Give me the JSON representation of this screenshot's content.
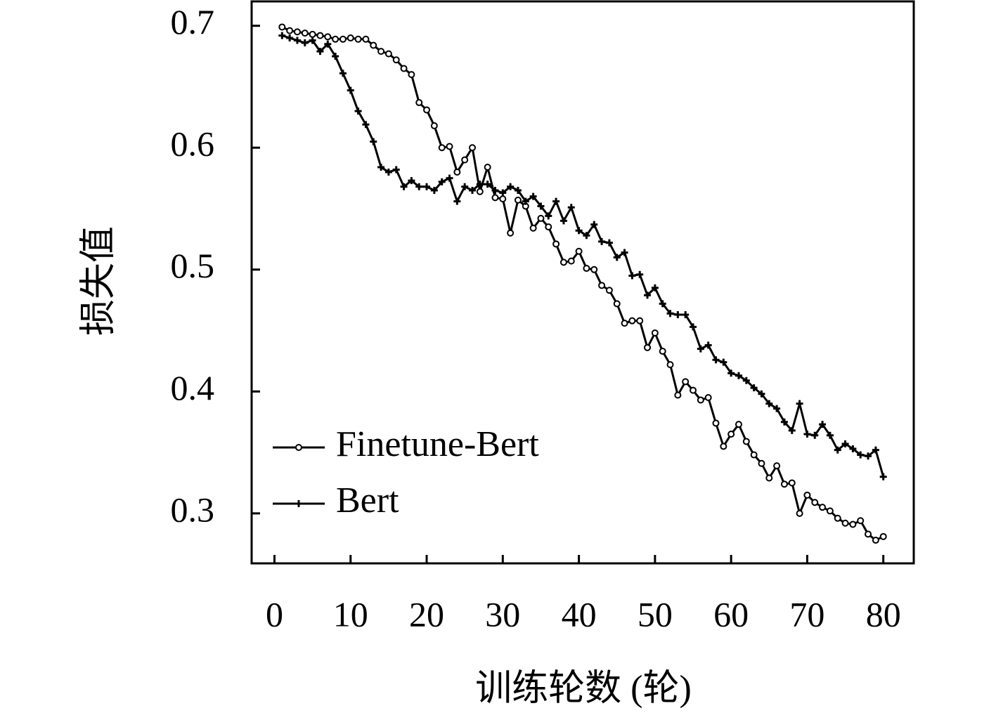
{
  "chart_data": {
    "type": "line",
    "xlabel": "训练轮数 (轮)",
    "ylabel": "损失值",
    "x": [
      1,
      2,
      3,
      4,
      5,
      6,
      7,
      8,
      9,
      10,
      11,
      12,
      13,
      14,
      15,
      16,
      17,
      18,
      19,
      20,
      21,
      22,
      23,
      24,
      25,
      26,
      27,
      28,
      29,
      30,
      31,
      32,
      33,
      34,
      35,
      36,
      37,
      38,
      39,
      40,
      41,
      42,
      43,
      44,
      45,
      46,
      47,
      48,
      49,
      50,
      51,
      52,
      53,
      54,
      55,
      56,
      57,
      58,
      59,
      60,
      61,
      62,
      63,
      64,
      65,
      66,
      67,
      68,
      69,
      70,
      71,
      72,
      73,
      74,
      75,
      76,
      77,
      78,
      79,
      80
    ],
    "series": [
      {
        "name": "Finetune-Bert",
        "color": "#000000",
        "marker": "circle",
        "values": [
          0.699,
          0.696,
          0.695,
          0.694,
          0.693,
          0.692,
          0.691,
          0.689,
          0.689,
          0.69,
          0.689,
          0.689,
          0.684,
          0.679,
          0.677,
          0.672,
          0.665,
          0.66,
          0.637,
          0.631,
          0.618,
          0.6,
          0.601,
          0.58,
          0.59,
          0.6,
          0.564,
          0.584,
          0.559,
          0.558,
          0.53,
          0.557,
          0.552,
          0.534,
          0.542,
          0.535,
          0.521,
          0.506,
          0.507,
          0.515,
          0.501,
          0.5,
          0.487,
          0.483,
          0.472,
          0.456,
          0.458,
          0.458,
          0.436,
          0.448,
          0.433,
          0.422,
          0.397,
          0.408,
          0.401,
          0.393,
          0.395,
          0.374,
          0.355,
          0.365,
          0.373,
          0.359,
          0.348,
          0.341,
          0.329,
          0.339,
          0.324,
          0.325,
          0.3,
          0.315,
          0.309,
          0.305,
          0.302,
          0.296,
          0.292,
          0.291,
          0.294,
          0.283,
          0.278,
          0.281
        ]
      },
      {
        "name": "Bert",
        "color": "#000000",
        "marker": "plus",
        "values": [
          0.692,
          0.69,
          0.688,
          0.686,
          0.688,
          0.679,
          0.685,
          0.675,
          0.661,
          0.647,
          0.63,
          0.619,
          0.605,
          0.584,
          0.58,
          0.582,
          0.568,
          0.573,
          0.568,
          0.568,
          0.565,
          0.572,
          0.575,
          0.556,
          0.568,
          0.565,
          0.57,
          0.57,
          0.565,
          0.563,
          0.568,
          0.565,
          0.556,
          0.56,
          0.552,
          0.544,
          0.556,
          0.54,
          0.551,
          0.532,
          0.528,
          0.537,
          0.523,
          0.522,
          0.51,
          0.514,
          0.495,
          0.496,
          0.479,
          0.485,
          0.472,
          0.464,
          0.463,
          0.463,
          0.453,
          0.435,
          0.438,
          0.426,
          0.424,
          0.415,
          0.413,
          0.409,
          0.403,
          0.398,
          0.39,
          0.386,
          0.375,
          0.368,
          0.39,
          0.365,
          0.364,
          0.373,
          0.364,
          0.352,
          0.357,
          0.353,
          0.348,
          0.347,
          0.352,
          0.33
        ]
      }
    ],
    "xlim": [
      -3,
      84
    ],
    "xticks": [
      0,
      10,
      20,
      30,
      40,
      50,
      60,
      70,
      80
    ],
    "ylim": [
      0.259,
      0.72
    ],
    "yticks": [
      0.3,
      0.4,
      0.5,
      0.6,
      0.7
    ],
    "grid": false,
    "legend": "lower left"
  }
}
